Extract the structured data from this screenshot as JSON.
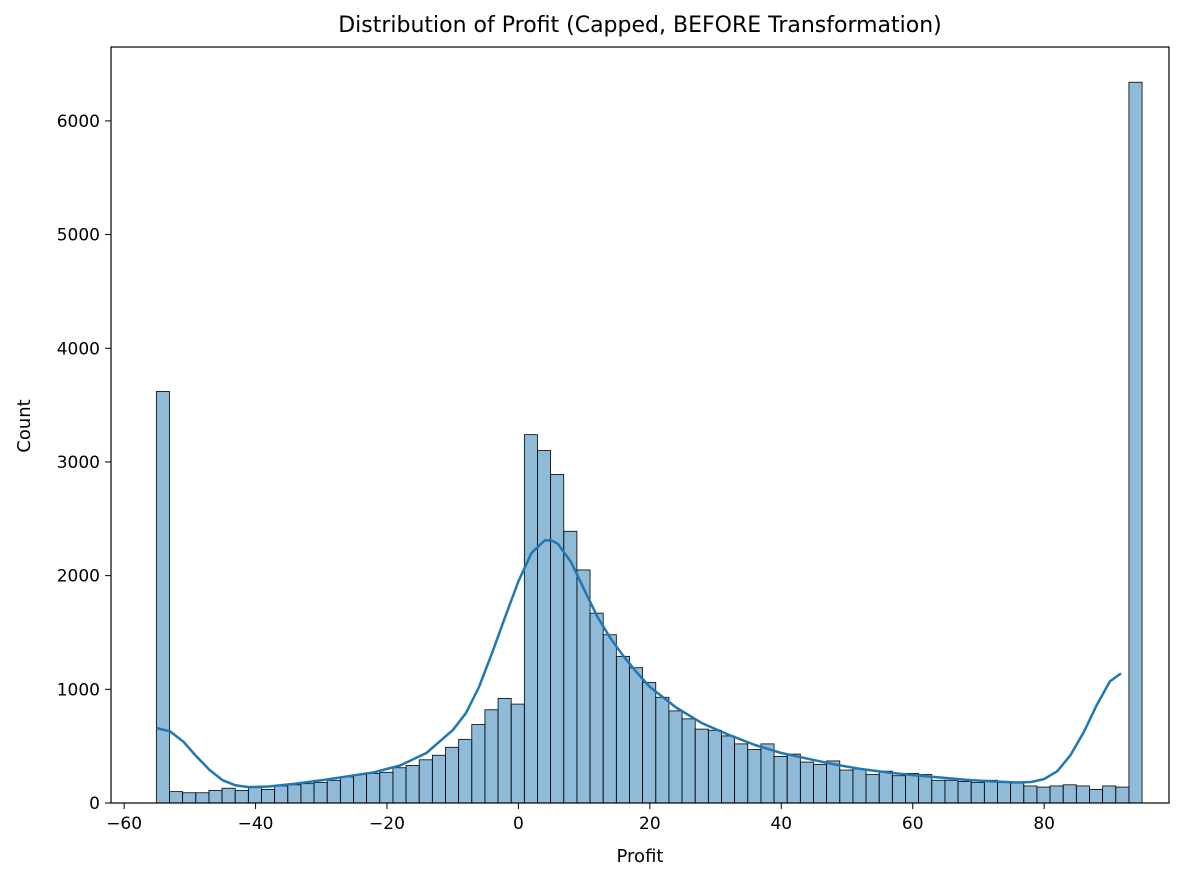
{
  "chart_data": {
    "type": "bar",
    "title": "Distribution of Profit (Capped, BEFORE Transformation)",
    "xlabel": "Profit",
    "ylabel": "Count",
    "xlim": [
      -62,
      99
    ],
    "ylim": [
      0,
      6650
    ],
    "xticks": [
      -60,
      -40,
      -20,
      0,
      20,
      40,
      60,
      80
    ],
    "xtick_labels": [
      "−60",
      "−40",
      "−20",
      "0",
      "20",
      "40",
      "60",
      "80"
    ],
    "yticks": [
      0,
      1000,
      2000,
      3000,
      4000,
      5000,
      6000
    ],
    "ytick_labels": [
      "0",
      "1000",
      "2000",
      "3000",
      "4000",
      "5000",
      "6000"
    ],
    "grid": false,
    "bin_start": -55.1,
    "bin_width": 2.0,
    "counts": [
      3620,
      100,
      90,
      90,
      110,
      130,
      110,
      140,
      120,
      150,
      160,
      170,
      180,
      200,
      230,
      250,
      260,
      270,
      310,
      330,
      380,
      420,
      490,
      560,
      690,
      820,
      920,
      870,
      3240,
      3100,
      2890,
      2390,
      2050,
      1670,
      1480,
      1290,
      1190,
      1060,
      930,
      810,
      740,
      650,
      640,
      590,
      520,
      470,
      520,
      410,
      430,
      360,
      340,
      370,
      290,
      300,
      250,
      280,
      240,
      260,
      250,
      200,
      200,
      190,
      180,
      200,
      190,
      180,
      150,
      140,
      150,
      160,
      150,
      120,
      150,
      140,
      6340
    ],
    "kde": {
      "x": [
        -55.1,
        -53,
        -51,
        -49,
        -47,
        -45,
        -43,
        -41,
        -38,
        -34,
        -30,
        -26,
        -22,
        -18,
        -14,
        -10,
        -8,
        -6,
        -4,
        -2,
        0,
        2,
        4,
        5,
        6,
        8,
        10,
        12,
        14,
        16,
        18,
        20,
        24,
        28,
        32,
        36,
        40,
        44,
        48,
        52,
        56,
        60,
        64,
        68,
        72,
        76,
        78,
        80,
        82,
        84,
        86,
        88,
        90,
        91.7
      ],
      "y": [
        660,
        630,
        540,
        410,
        290,
        200,
        155,
        140,
        145,
        170,
        200,
        235,
        270,
        330,
        440,
        640,
        790,
        1020,
        1320,
        1640,
        1950,
        2200,
        2310,
        2310,
        2280,
        2120,
        1880,
        1640,
        1450,
        1290,
        1150,
        1020,
        840,
        700,
        600,
        510,
        440,
        390,
        340,
        300,
        270,
        245,
        225,
        205,
        190,
        180,
        185,
        210,
        280,
        420,
        620,
        860,
        1070,
        1140
      ]
    },
    "bar_color": "#1f77b4",
    "bar_alpha": 0.5,
    "line_color": "#1f77b4"
  }
}
